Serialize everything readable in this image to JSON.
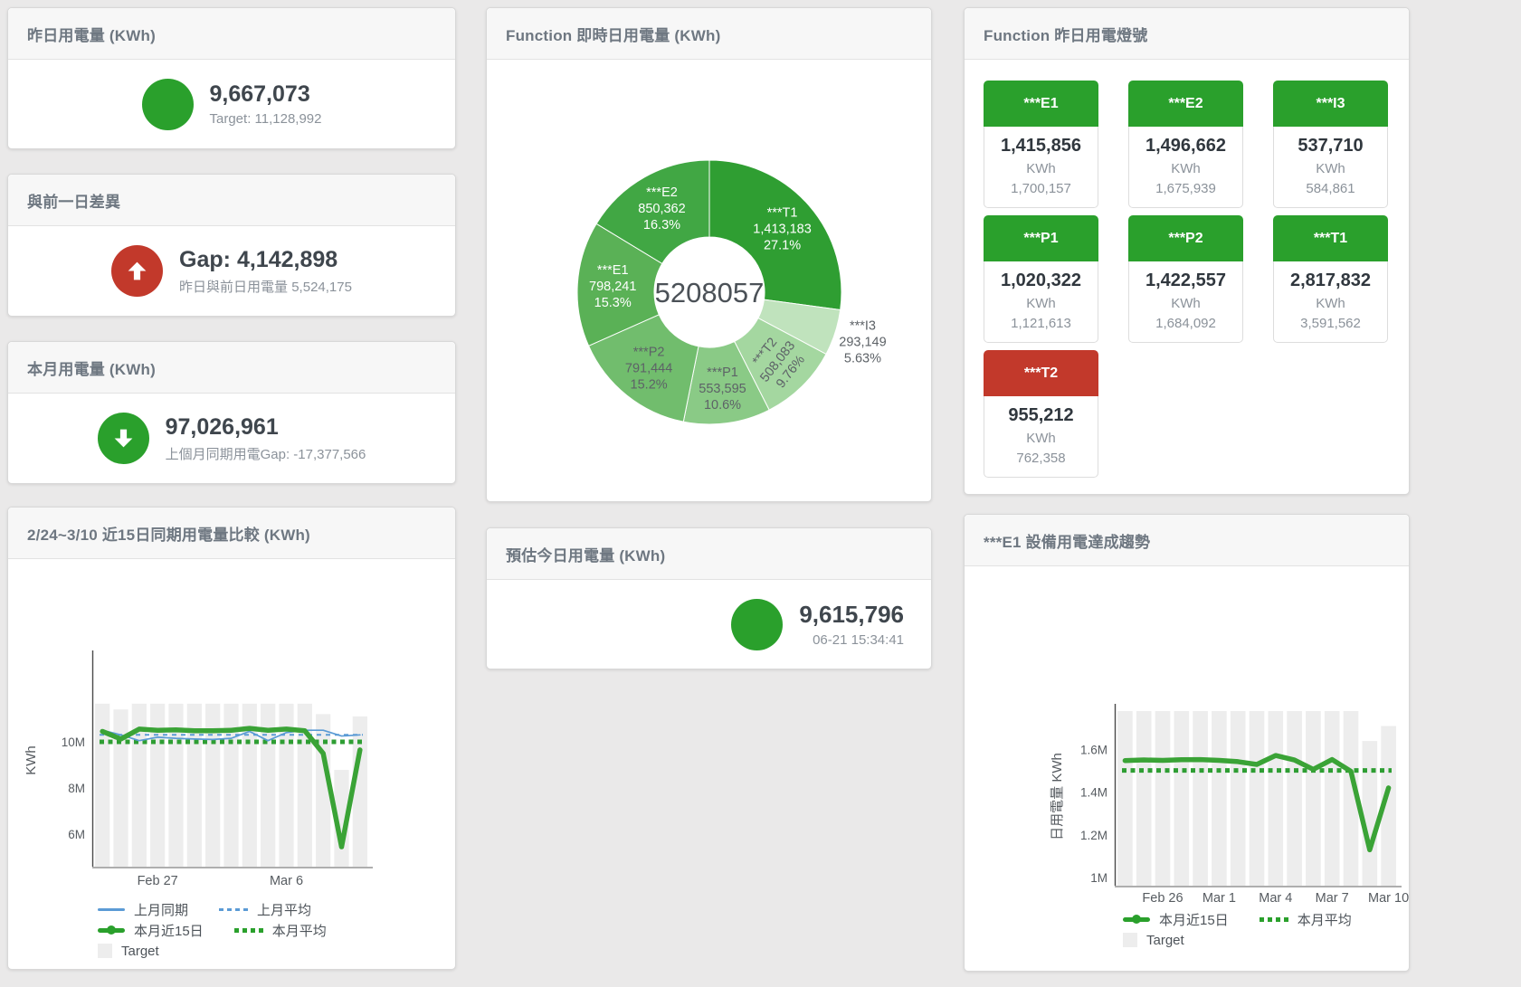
{
  "colors": {
    "green": "#2aa02c",
    "red": "#c2392b",
    "blue": "#5b9bd5",
    "bar": "#ededed"
  },
  "cards": {
    "yesterday": {
      "title": "昨日用電量 (KWh)",
      "value": "9,667,073",
      "subtitle": "Target: 11,128,992"
    },
    "gap": {
      "title": "與前一日差異",
      "value": "Gap: 4,142,898",
      "subtitle": "昨日與前日用電量 5,524,175"
    },
    "month": {
      "title": "本月用電量 (KWh)",
      "value": "97,026,961",
      "subtitle": "上個月同期用電Gap: -17,377,566"
    },
    "estimate": {
      "title": "預估今日用電量 (KWh)",
      "value": "9,615,796",
      "subtitle": "06-21 15:34:41"
    }
  },
  "lights": {
    "title": "Function 昨日用電燈號",
    "tiles": [
      {
        "label": "***E1",
        "value": "1,415,856",
        "unit": "KWh",
        "target": "1,700,157",
        "status": "green"
      },
      {
        "label": "***E2",
        "value": "1,496,662",
        "unit": "KWh",
        "target": "1,675,939",
        "status": "green"
      },
      {
        "label": "***I3",
        "value": "537,710",
        "unit": "KWh",
        "target": "584,861",
        "status": "green"
      },
      {
        "label": "***P1",
        "value": "1,020,322",
        "unit": "KWh",
        "target": "1,121,613",
        "status": "green"
      },
      {
        "label": "***P2",
        "value": "1,422,557",
        "unit": "KWh",
        "target": "1,684,092",
        "status": "green"
      },
      {
        "label": "***T1",
        "value": "2,817,832",
        "unit": "KWh",
        "target": "3,591,562",
        "status": "green"
      },
      {
        "label": "***T2",
        "value": "955,212",
        "unit": "KWh",
        "target": "762,358",
        "status": "red"
      }
    ]
  },
  "chart_data": [
    {
      "id": "realtime-usage-donut",
      "type": "pie",
      "title": "Function 即時日用電量 (KWh)",
      "center_total": "5208057",
      "unit": "KWh",
      "slices": [
        {
          "name": "***T1",
          "value": 1413183,
          "pct": "27.1%",
          "color": "#2f9e32",
          "label_color": "#ffffff",
          "label_pos": "inside"
        },
        {
          "name": "***I3",
          "value": 293149,
          "pct": "5.63%",
          "color": "#c0e3bd",
          "label_color": "#5d6267",
          "label_pos": "outside"
        },
        {
          "name": "***T2",
          "value": 508083,
          "pct": "9.76%",
          "color": "#a4d7a0",
          "label_color": "#5d6267",
          "label_pos": "inside",
          "label_rotate": -52
        },
        {
          "name": "***P1",
          "value": 553595,
          "pct": "10.6%",
          "color": "#8aca86",
          "label_color": "#5d6267",
          "label_pos": "inside"
        },
        {
          "name": "***P2",
          "value": 791444,
          "pct": "15.2%",
          "color": "#71bd6d",
          "label_color": "#5d6267",
          "label_pos": "inside"
        },
        {
          "name": "***E1",
          "value": 798241,
          "pct": "15.3%",
          "color": "#5ab156",
          "label_color": "#ffffff",
          "label_pos": "inside"
        },
        {
          "name": "***E2",
          "value": 850362,
          "pct": "16.3%",
          "color": "#41a744",
          "label_color": "#ffffff",
          "label_pos": "inside"
        }
      ]
    },
    {
      "id": "compare-15d",
      "type": "line",
      "title": "2/24~3/10 近15日同期用電量比較 (KWh)",
      "ylabel": "KWh",
      "ylim": [
        4590000,
        13800000
      ],
      "grid": false,
      "legend_position": "bottom",
      "yticks": [
        {
          "value": 6000000,
          "label": "6M"
        },
        {
          "value": 8000000,
          "label": "8M"
        },
        {
          "value": 10000000,
          "label": "10M"
        }
      ],
      "xticks": [
        {
          "slot": 4,
          "label": "Feb 27"
        },
        {
          "slot": 11,
          "label": "Mar 6"
        }
      ],
      "target": {
        "name": "Target",
        "color": "#ededed",
        "values": [
          11650000,
          11400000,
          11650000,
          11650000,
          11650000,
          11650000,
          11650000,
          11650000,
          11650000,
          11650000,
          11650000,
          11650000,
          11200000,
          8780000,
          11100000
        ]
      },
      "series": [
        {
          "name": "上月同期",
          "color": "#5b9bd5",
          "width": 1.7,
          "values": [
            10500000,
            10300000,
            10050000,
            10200000,
            10150000,
            10120000,
            10100000,
            10150000,
            10450000,
            10050000,
            10400000,
            10500000,
            10500000,
            10250000,
            10300000
          ]
        },
        {
          "name": "上月平均",
          "color": "#5b9bd5",
          "width": 2,
          "dash": "5 5",
          "avg": 10300000
        },
        {
          "name": "本月近15日",
          "color": "#3aa336",
          "width": 5.5,
          "values": [
            10450000,
            10120000,
            10550000,
            10500000,
            10520000,
            10480000,
            10480000,
            10500000,
            10580000,
            10500000,
            10550000,
            10480000,
            9500000,
            5450000,
            9650000
          ]
        },
        {
          "name": "本月平均",
          "color": "#2e9e33",
          "width": 5,
          "dash": "5 4.5",
          "avg": 10000000
        }
      ]
    },
    {
      "id": "e1-trend",
      "type": "line",
      "title": "***E1 設備用電達成趨勢",
      "ylabel": "日用電量 KWh",
      "ylim": [
        962000,
        1797000
      ],
      "grid": false,
      "legend_position": "bottom",
      "yticks": [
        {
          "value": 1000000,
          "label": "1M"
        },
        {
          "value": 1200000,
          "label": "1.2M"
        },
        {
          "value": 1400000,
          "label": "1.4M"
        },
        {
          "value": 1600000,
          "label": "1.6M"
        }
      ],
      "xticks": [
        {
          "slot": 3,
          "label": "Feb 26"
        },
        {
          "slot": 6,
          "label": "Mar 1"
        },
        {
          "slot": 9,
          "label": "Mar 4"
        },
        {
          "slot": 12,
          "label": "Mar 7"
        },
        {
          "slot": 15,
          "label": "Mar 10"
        }
      ],
      "target": {
        "name": "Target",
        "color": "#ededed",
        "values": [
          1780000,
          1780000,
          1780000,
          1780000,
          1780000,
          1780000,
          1780000,
          1780000,
          1780000,
          1780000,
          1780000,
          1780000,
          1780000,
          1640000,
          1710000
        ]
      },
      "series": [
        {
          "name": "本月近15日",
          "color": "#3aa336",
          "width": 5.5,
          "values": [
            1548000,
            1551000,
            1549000,
            1552000,
            1553000,
            1549000,
            1543000,
            1530000,
            1572000,
            1551000,
            1507000,
            1553000,
            1498000,
            1130000,
            1420000
          ]
        },
        {
          "name": "本月平均",
          "color": "#2e9e33",
          "width": 5,
          "dash": "5 4.5",
          "avg": 1502000
        }
      ]
    }
  ]
}
